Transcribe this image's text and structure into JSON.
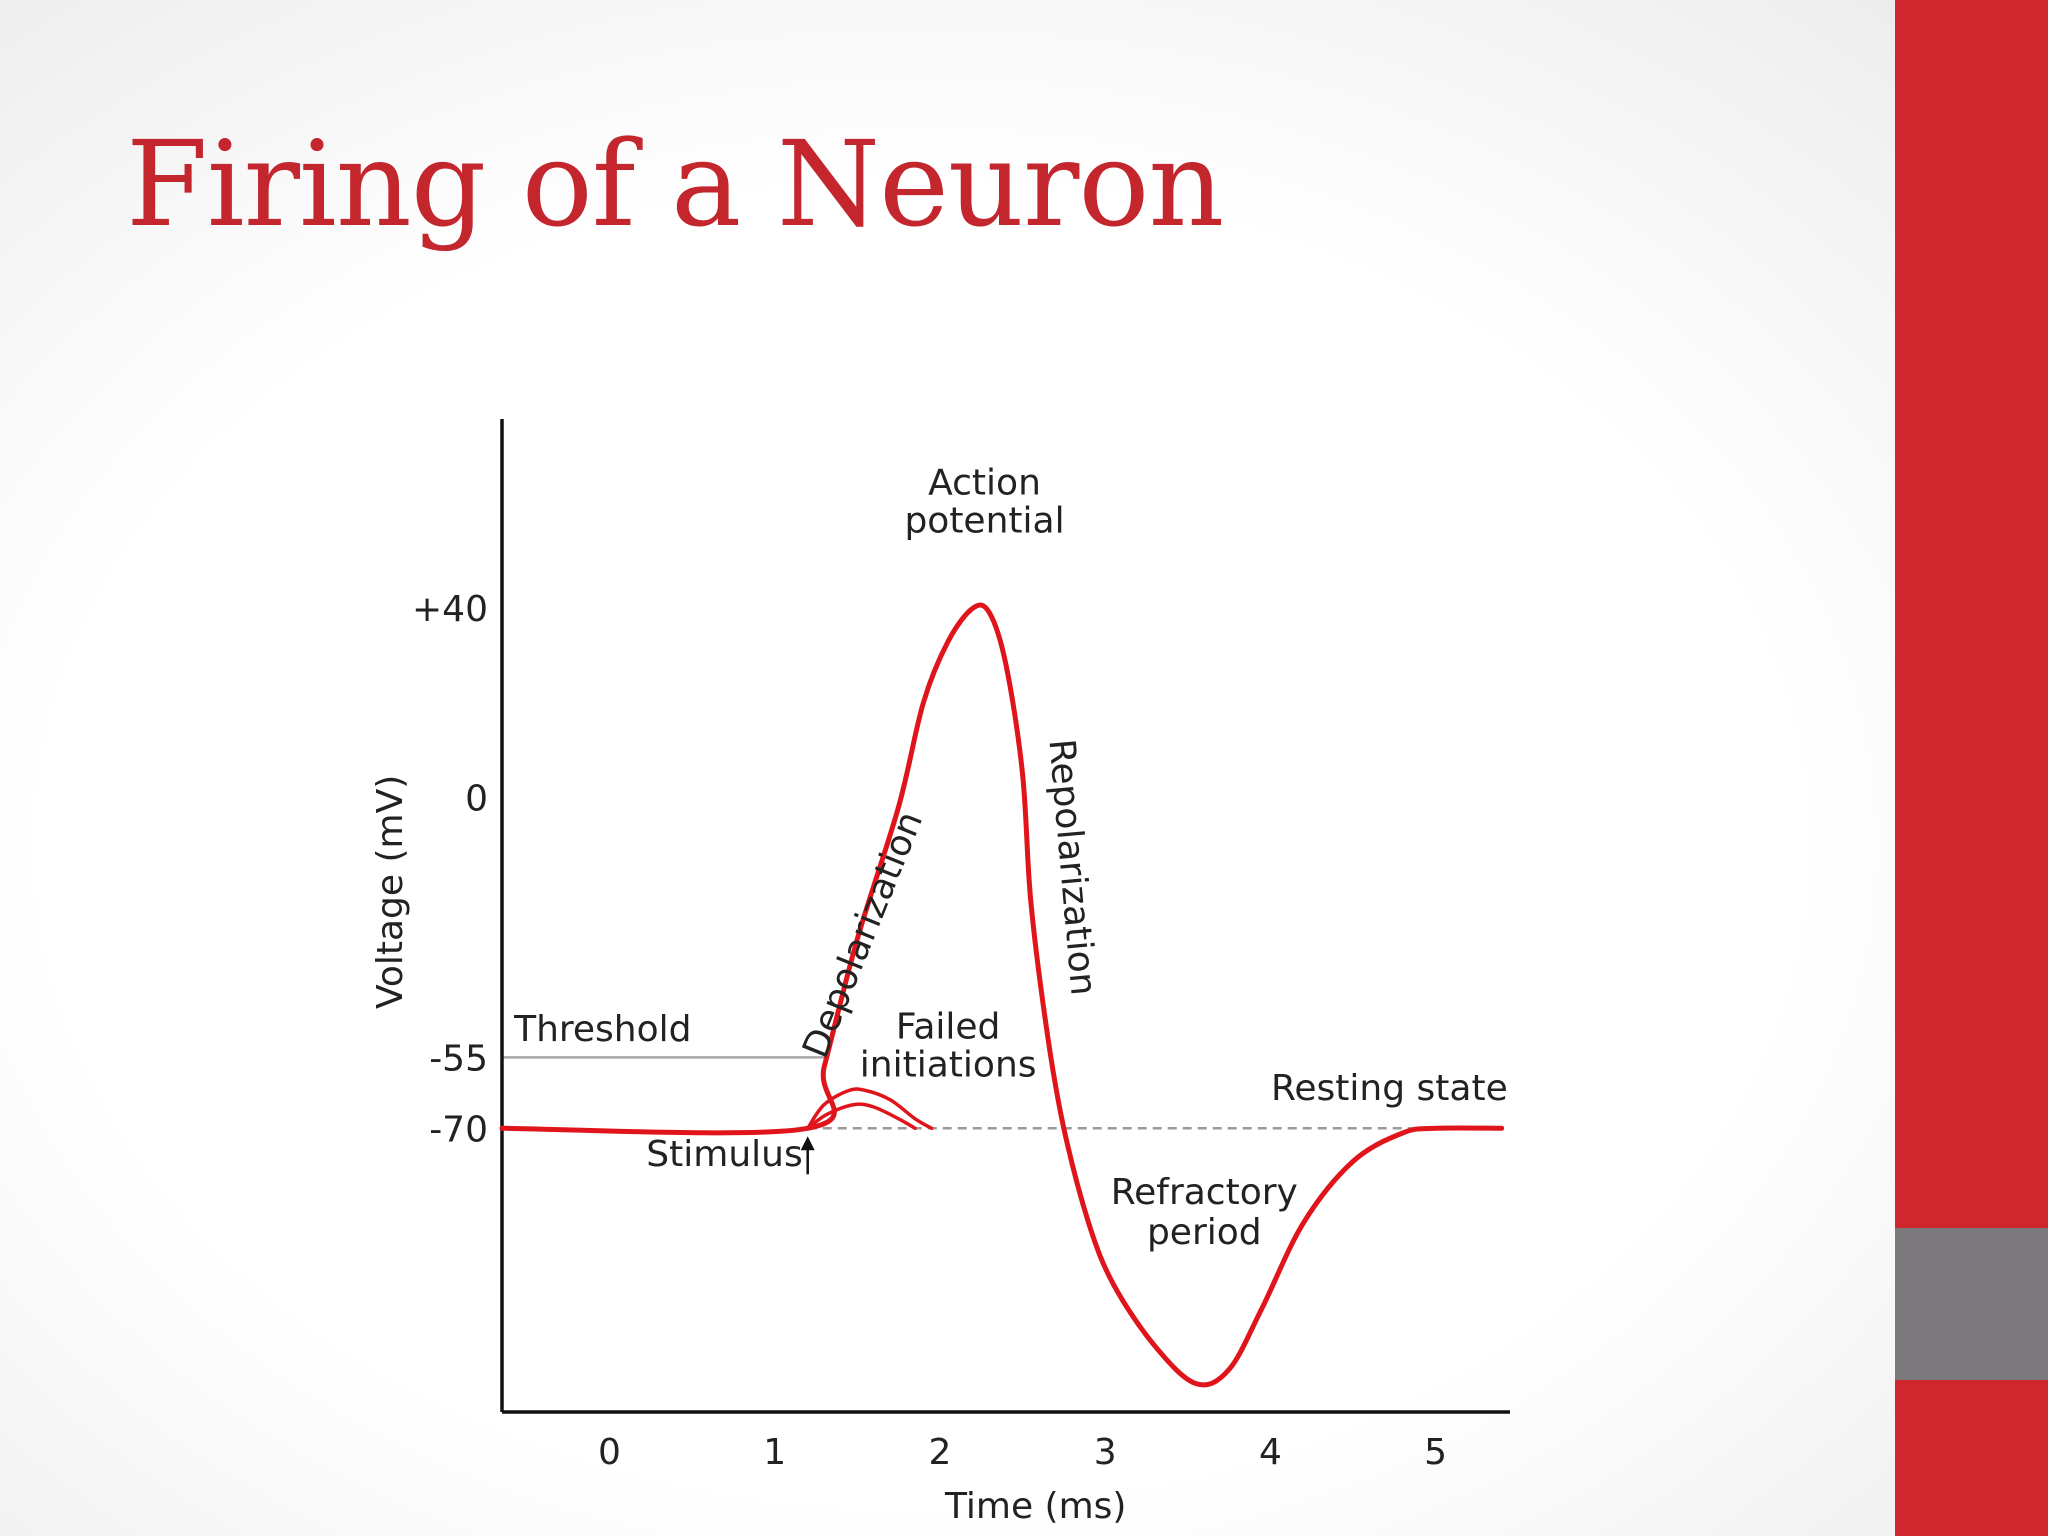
{
  "slide": {
    "title": "Firing of a Neuron",
    "colors": {
      "accent": "#c4262e",
      "sidebar_red": "#d0262d",
      "sidebar_gray": "#7b797b",
      "curve": "#e0151b"
    }
  },
  "chart_data": {
    "type": "line",
    "title": "",
    "xlabel": "Time (ms)",
    "ylabel": "Voltage (mV)",
    "xlim": [
      -0.65,
      5.45
    ],
    "ylim": [
      -130,
      80
    ],
    "x_ticks": [
      0,
      1,
      2,
      3,
      4,
      5
    ],
    "y_ticks": [
      {
        "value": 40,
        "label": "+40"
      },
      {
        "value": 0,
        "label": "0"
      },
      {
        "value": -55,
        "label": "-55"
      },
      {
        "value": -70,
        "label": "-70"
      }
    ],
    "grid": false,
    "series": [
      {
        "points": [
          [
            -0.65,
            -70
          ],
          [
            1.2,
            -70
          ],
          [
            1.3,
            -57
          ],
          [
            1.5,
            -30
          ],
          [
            1.75,
            -2
          ],
          [
            1.9,
            20
          ],
          [
            2.05,
            33
          ],
          [
            2.2,
            40
          ],
          [
            2.3,
            39
          ],
          [
            2.4,
            28
          ],
          [
            2.5,
            5
          ],
          [
            2.55,
            -22
          ],
          [
            2.65,
            -50
          ],
          [
            2.75,
            -70
          ],
          [
            2.9,
            -90
          ],
          [
            3.05,
            -103
          ],
          [
            3.3,
            -116
          ],
          [
            3.55,
            -124
          ],
          [
            3.75,
            -121
          ],
          [
            3.95,
            -108
          ],
          [
            4.2,
            -90
          ],
          [
            4.5,
            -77
          ],
          [
            4.8,
            -71
          ],
          [
            5.0,
            -70
          ],
          [
            5.4,
            -70
          ]
        ]
      },
      {
        "points": [
          [
            1.2,
            -70
          ],
          [
            1.3,
            -65
          ],
          [
            1.45,
            -62
          ],
          [
            1.55,
            -62
          ],
          [
            1.7,
            -64
          ],
          [
            1.85,
            -68
          ],
          [
            1.95,
            -70
          ]
        ]
      },
      {
        "points": [
          [
            1.2,
            -70
          ],
          [
            1.32,
            -67
          ],
          [
            1.48,
            -65
          ],
          [
            1.6,
            -65.5
          ],
          [
            1.75,
            -68
          ],
          [
            1.85,
            -70
          ]
        ]
      }
    ],
    "reference_lines": [
      {
        "value": -55,
        "label": "Threshold",
        "from_x": -0.65,
        "to_x": 1.3
      },
      {
        "value": -70,
        "label": "Resting state",
        "from_x": 1.2,
        "to_x": 5.4,
        "style": "dashed"
      }
    ],
    "annotations": [
      {
        "text": "Action",
        "x": 2.27,
        "y": 64
      },
      {
        "text": "potential",
        "x": 2.27,
        "y": 56
      },
      {
        "text": "Depolarization",
        "x": 1.6,
        "y": -30,
        "rotate": -68
      },
      {
        "text": "Repolarization",
        "x": 2.73,
        "y": -15,
        "rotate": 85
      },
      {
        "text": "Failed",
        "x": 2.05,
        "y": -51
      },
      {
        "text": "initiations",
        "x": 2.05,
        "y": -59
      },
      {
        "text": "Refractory",
        "x": 3.6,
        "y": -86
      },
      {
        "text": "period",
        "x": 3.6,
        "y": -94.5
      },
      {
        "text": "Stimulus",
        "x": 1.17,
        "y": -78,
        "anchor": "end"
      },
      {
        "text": "Resting state",
        "x": 4.72,
        "y": -64
      },
      {
        "text": "Threshold",
        "x": -0.04,
        "y": -51.5
      }
    ],
    "stimulus_arrow_x": 1.2
  }
}
